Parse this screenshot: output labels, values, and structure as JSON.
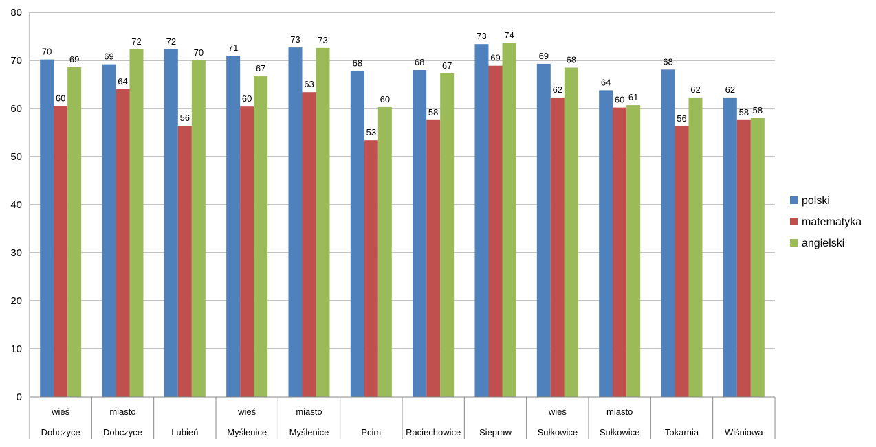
{
  "chart_data": {
    "type": "bar",
    "title": "",
    "xlabel": "",
    "ylabel": "",
    "ylim": [
      0,
      80
    ],
    "yticks": [
      0,
      10,
      20,
      30,
      40,
      50,
      60,
      70,
      80
    ],
    "grid": true,
    "legend_position": "right",
    "categories": [
      {
        "line1": "wieś",
        "line2": "Dobczyce"
      },
      {
        "line1": "miasto",
        "line2": "Dobczyce"
      },
      {
        "line1": "",
        "line2": "Lubień"
      },
      {
        "line1": "wieś",
        "line2": "Myślenice"
      },
      {
        "line1": "miasto",
        "line2": "Myślenice"
      },
      {
        "line1": "",
        "line2": "Pcim"
      },
      {
        "line1": "",
        "line2": "Raciechowice"
      },
      {
        "line1": "",
        "line2": "Siepraw"
      },
      {
        "line1": "wieś",
        "line2": "Sułkowice"
      },
      {
        "line1": "miasto",
        "line2": "Sułkowice"
      },
      {
        "line1": "",
        "line2": "Tokarnia"
      },
      {
        "line1": "",
        "line2": "Wiśniowa"
      }
    ],
    "series": [
      {
        "name": "polski",
        "color": "#4F81BD",
        "values": [
          70.2,
          69.2,
          72.3,
          71.0,
          72.7,
          67.8,
          68.0,
          73.4,
          69.3,
          63.8,
          68.1,
          62.3
        ],
        "labels": [
          "70",
          "69",
          "72",
          "71",
          "73",
          "68",
          "68",
          "73",
          "69",
          "64",
          "68",
          "62"
        ]
      },
      {
        "name": "matematyka",
        "color": "#C0504D",
        "values": [
          60.5,
          64.0,
          56.4,
          60.4,
          63.4,
          53.4,
          57.6,
          68.9,
          62.3,
          60.2,
          56.3,
          57.6
        ],
        "labels": [
          "60",
          "64",
          "56",
          "60",
          "63",
          "53",
          "58",
          "69",
          "62",
          "60",
          "56",
          "58"
        ]
      },
      {
        "name": "angielski",
        "color": "#9BBB59",
        "values": [
          68.6,
          72.3,
          70.0,
          66.7,
          72.6,
          60.3,
          67.3,
          73.6,
          68.5,
          60.7,
          62.3,
          58.0
        ],
        "labels": [
          "69",
          "72",
          "70",
          "67",
          "73",
          "60",
          "67",
          "74",
          "68",
          "61",
          "62",
          "58"
        ]
      }
    ]
  }
}
